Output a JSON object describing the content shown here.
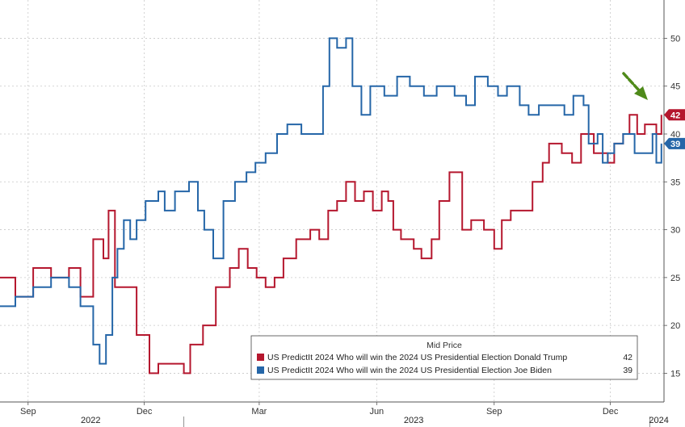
{
  "chart_data": {
    "type": "line",
    "title": "",
    "xlabel": "",
    "ylabel": "",
    "ylim": [
      12,
      54
    ],
    "y_ticks": [
      15,
      20,
      25,
      30,
      35,
      40,
      45,
      50
    ],
    "x_range": [
      "2022-08-10",
      "2024-01-12"
    ],
    "x_tick_labels": [
      {
        "date": "2022-09-01",
        "label": "Sep"
      },
      {
        "date": "2022-12-01",
        "label": "Dec"
      },
      {
        "date": "2023-03-01",
        "label": "Mar"
      },
      {
        "date": "2023-06-01",
        "label": "Jun"
      },
      {
        "date": "2023-09-01",
        "label": "Sep"
      },
      {
        "date": "2023-12-01",
        "label": "Dec"
      }
    ],
    "year_labels": [
      {
        "date": "2022-10-20",
        "label": "2022"
      },
      {
        "date": "2023-06-30",
        "label": "2023"
      },
      {
        "date": "2024-01-08",
        "label": "2024"
      }
    ],
    "year_separators": [
      "2023-01-01",
      "2024-01-01"
    ],
    "grid": true,
    "legend_position": "bottom-right",
    "legend_title": "Mid Price",
    "series": [
      {
        "name": "US PredictIt 2024 Who will win the 2024 US Presidential Election Donald Trump",
        "last": "42",
        "color": "#b5172e",
        "points": [
          [
            "2022-08-10",
            25
          ],
          [
            "2022-08-22",
            23
          ],
          [
            "2022-09-05",
            26
          ],
          [
            "2022-09-19",
            25
          ],
          [
            "2022-10-03",
            26
          ],
          [
            "2022-10-12",
            23
          ],
          [
            "2022-10-22",
            29
          ],
          [
            "2022-10-30",
            27
          ],
          [
            "2022-11-03",
            32
          ],
          [
            "2022-11-08",
            24
          ],
          [
            "2022-11-14",
            24
          ],
          [
            "2022-11-25",
            19
          ],
          [
            "2022-12-05",
            15
          ],
          [
            "2022-12-12",
            16
          ],
          [
            "2022-12-22",
            16
          ],
          [
            "2023-01-01",
            15
          ],
          [
            "2023-01-06",
            18
          ],
          [
            "2023-01-16",
            20
          ],
          [
            "2023-01-26",
            24
          ],
          [
            "2023-02-06",
            26
          ],
          [
            "2023-02-13",
            28
          ],
          [
            "2023-02-20",
            26
          ],
          [
            "2023-02-27",
            25
          ],
          [
            "2023-03-06",
            24
          ],
          [
            "2023-03-13",
            25
          ],
          [
            "2023-03-20",
            27
          ],
          [
            "2023-03-30",
            29
          ],
          [
            "2023-04-10",
            30
          ],
          [
            "2023-04-17",
            29
          ],
          [
            "2023-04-24",
            32
          ],
          [
            "2023-05-01",
            33
          ],
          [
            "2023-05-08",
            35
          ],
          [
            "2023-05-15",
            33
          ],
          [
            "2023-05-22",
            34
          ],
          [
            "2023-05-29",
            32
          ],
          [
            "2023-06-05",
            34
          ],
          [
            "2023-06-10",
            33
          ],
          [
            "2023-06-14",
            30
          ],
          [
            "2023-06-20",
            29
          ],
          [
            "2023-06-30",
            28
          ],
          [
            "2023-07-06",
            27
          ],
          [
            "2023-07-14",
            29
          ],
          [
            "2023-07-20",
            33
          ],
          [
            "2023-07-28",
            36
          ],
          [
            "2023-08-07",
            30
          ],
          [
            "2023-08-14",
            31
          ],
          [
            "2023-08-24",
            30
          ],
          [
            "2023-09-01",
            28
          ],
          [
            "2023-09-07",
            31
          ],
          [
            "2023-09-14",
            32
          ],
          [
            "2023-09-22",
            32
          ],
          [
            "2023-10-01",
            35
          ],
          [
            "2023-10-09",
            37
          ],
          [
            "2023-10-14",
            39
          ],
          [
            "2023-10-24",
            38
          ],
          [
            "2023-11-01",
            37
          ],
          [
            "2023-11-08",
            40
          ],
          [
            "2023-11-18",
            38
          ],
          [
            "2023-11-29",
            37
          ],
          [
            "2023-12-04",
            39
          ],
          [
            "2023-12-11",
            40
          ],
          [
            "2023-12-16",
            42
          ],
          [
            "2023-12-22",
            40
          ],
          [
            "2023-12-28",
            41
          ],
          [
            "2024-01-06",
            40
          ],
          [
            "2024-01-10",
            42
          ]
        ]
      },
      {
        "name": "US PredictIt 2024 Who will win the 2024 US Presidential Election Joe Biden",
        "last": "39",
        "color": "#2566a8",
        "points": [
          [
            "2022-08-10",
            22
          ],
          [
            "2022-08-22",
            23
          ],
          [
            "2022-09-05",
            24
          ],
          [
            "2022-09-19",
            25
          ],
          [
            "2022-10-03",
            24
          ],
          [
            "2022-10-12",
            22
          ],
          [
            "2022-10-22",
            18
          ],
          [
            "2022-10-27",
            16
          ],
          [
            "2022-11-01",
            19
          ],
          [
            "2022-11-06",
            25
          ],
          [
            "2022-11-10",
            28
          ],
          [
            "2022-11-15",
            31
          ],
          [
            "2022-11-20",
            29
          ],
          [
            "2022-11-25",
            31
          ],
          [
            "2022-12-02",
            33
          ],
          [
            "2022-12-12",
            34
          ],
          [
            "2022-12-17",
            32
          ],
          [
            "2022-12-25",
            34
          ],
          [
            "2023-01-05",
            35
          ],
          [
            "2023-01-12",
            32
          ],
          [
            "2023-01-17",
            30
          ],
          [
            "2023-01-24",
            27
          ],
          [
            "2023-02-01",
            33
          ],
          [
            "2023-02-10",
            35
          ],
          [
            "2023-02-19",
            36
          ],
          [
            "2023-02-26",
            37
          ],
          [
            "2023-03-06",
            38
          ],
          [
            "2023-03-15",
            40
          ],
          [
            "2023-03-23",
            41
          ],
          [
            "2023-04-03",
            40
          ],
          [
            "2023-04-12",
            40
          ],
          [
            "2023-04-20",
            45
          ],
          [
            "2023-04-25",
            50
          ],
          [
            "2023-05-01",
            49
          ],
          [
            "2023-05-08",
            50
          ],
          [
            "2023-05-13",
            45
          ],
          [
            "2023-05-20",
            42
          ],
          [
            "2023-05-27",
            45
          ],
          [
            "2023-06-07",
            44
          ],
          [
            "2023-06-17",
            46
          ],
          [
            "2023-06-27",
            45
          ],
          [
            "2023-07-08",
            44
          ],
          [
            "2023-07-18",
            45
          ],
          [
            "2023-08-01",
            44
          ],
          [
            "2023-08-10",
            43
          ],
          [
            "2023-08-17",
            46
          ],
          [
            "2023-08-27",
            45
          ],
          [
            "2023-09-04",
            44
          ],
          [
            "2023-09-11",
            45
          ],
          [
            "2023-09-21",
            43
          ],
          [
            "2023-09-28",
            42
          ],
          [
            "2023-10-06",
            43
          ],
          [
            "2023-10-16",
            43
          ],
          [
            "2023-10-26",
            42
          ],
          [
            "2023-11-02",
            44
          ],
          [
            "2023-11-10",
            43
          ],
          [
            "2023-11-14",
            39
          ],
          [
            "2023-11-21",
            40
          ],
          [
            "2023-11-25",
            37
          ],
          [
            "2023-11-29",
            38
          ],
          [
            "2023-12-04",
            39
          ],
          [
            "2023-12-11",
            40
          ],
          [
            "2023-12-20",
            38
          ],
          [
            "2023-12-28",
            38
          ],
          [
            "2024-01-03",
            40
          ],
          [
            "2024-01-06",
            37
          ],
          [
            "2024-01-10",
            39
          ]
        ]
      }
    ]
  }
}
